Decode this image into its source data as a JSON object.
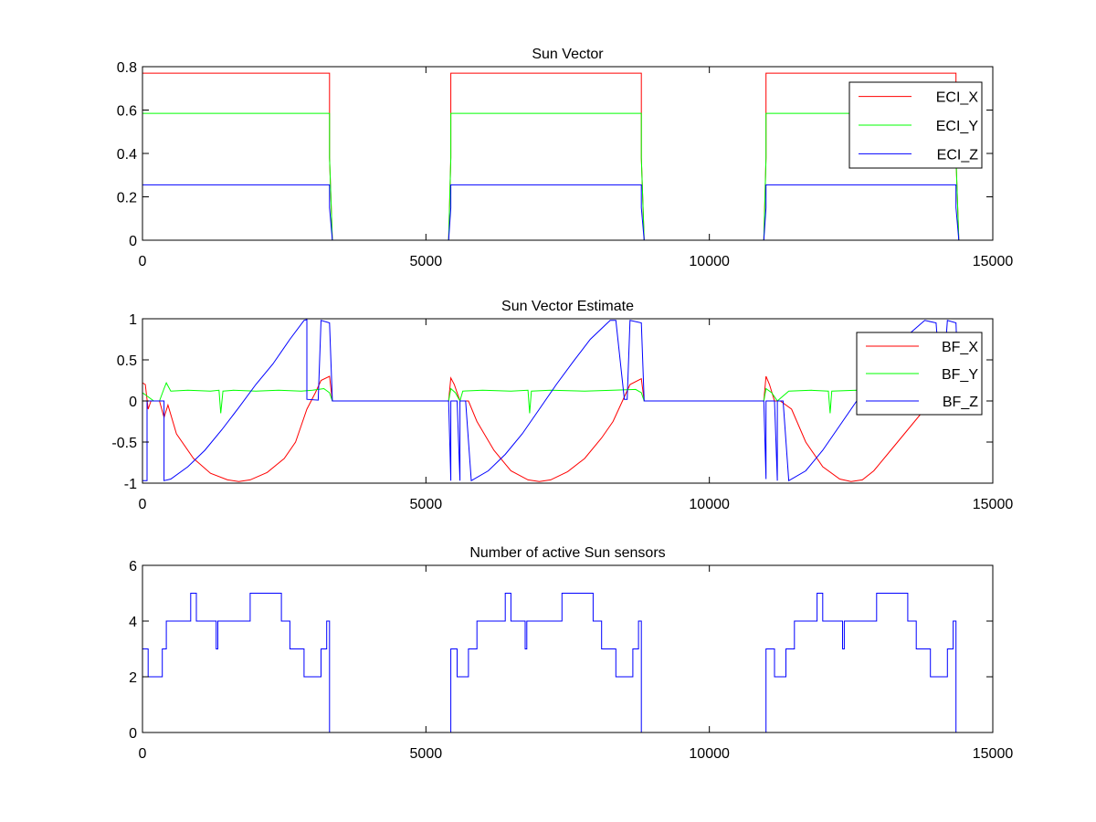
{
  "figure": {
    "background": "#ffffff"
  },
  "chart_data": [
    {
      "type": "line",
      "title": "Sun Vector",
      "xlabel": "",
      "ylabel": "",
      "xlim": [
        0,
        15000
      ],
      "ylim": [
        0,
        0.8
      ],
      "xticks": [
        0,
        5000,
        10000,
        15000
      ],
      "yticks": [
        0,
        0.2,
        0.4,
        0.6,
        0.8
      ],
      "xtick_labels": [
        "0",
        "5000",
        "10000",
        "15000"
      ],
      "ytick_labels": [
        "0",
        "0.2",
        "0.4",
        "0.6",
        "0.8"
      ],
      "grid": false,
      "legend_position": "top-right",
      "series": [
        {
          "name": "ECI_X",
          "color": "#ff0000",
          "x": [
            0,
            3300,
            3300,
            3350,
            5400,
            5440,
            5440,
            8800,
            8800,
            8850,
            10960,
            11000,
            11000,
            14350,
            14350,
            14400
          ],
          "y": [
            0.77,
            0.77,
            0.38,
            0,
            0,
            0.38,
            0.77,
            0.77,
            0.38,
            0,
            0,
            0.38,
            0.77,
            0.77,
            0.38,
            0
          ]
        },
        {
          "name": "ECI_Y",
          "color": "#00ff00",
          "x": [
            0,
            3300,
            3300,
            3350,
            5400,
            5440,
            5440,
            8800,
            8800,
            8850,
            10960,
            11000,
            11000,
            14350,
            14350,
            14400
          ],
          "y": [
            0.585,
            0.585,
            0.38,
            0,
            0,
            0.38,
            0.585,
            0.585,
            0.38,
            0,
            0,
            0.38,
            0.585,
            0.585,
            0.38,
            0
          ]
        },
        {
          "name": "ECI_Z",
          "color": "#0000ff",
          "x": [
            0,
            3300,
            3300,
            3350,
            5400,
            5440,
            5440,
            8800,
            8800,
            8850,
            10960,
            11000,
            11000,
            14350,
            14350,
            14400
          ],
          "y": [
            0.255,
            0.255,
            0.15,
            0,
            0,
            0.15,
            0.255,
            0.255,
            0.15,
            0,
            0,
            0.15,
            0.255,
            0.255,
            0.15,
            0
          ]
        }
      ]
    },
    {
      "type": "line",
      "title": "Sun Vector Estimate",
      "xlabel": "",
      "ylabel": "",
      "xlim": [
        0,
        15000
      ],
      "ylim": [
        -1,
        1
      ],
      "xticks": [
        0,
        5000,
        10000,
        15000
      ],
      "yticks": [
        -1,
        -0.5,
        0,
        0.5,
        1
      ],
      "xtick_labels": [
        "0",
        "5000",
        "10000",
        "15000"
      ],
      "ytick_labels": [
        "-1",
        "-0.5",
        "0",
        "0.5",
        "1"
      ],
      "grid": false,
      "legend_position": "top-right",
      "series": [
        {
          "name": "BF_X",
          "color": "#ff0000",
          "x": [
            0,
            50,
            100,
            150,
            200,
            300,
            380,
            450,
            600,
            900,
            1200,
            1500,
            1700,
            1900,
            2200,
            2500,
            2700,
            2800,
            2900,
            3050,
            3150,
            3300,
            3350,
            5400,
            5440,
            5500,
            5600,
            5650,
            5750,
            5900,
            6200,
            6500,
            6800,
            7000,
            7200,
            7500,
            7800,
            8100,
            8300,
            8500,
            8600,
            8800,
            8850,
            10960,
            11000,
            11060,
            11150,
            11250,
            11450,
            11700,
            12000,
            12300,
            12500,
            12700,
            12900,
            13200,
            13500,
            13800,
            14000,
            14150,
            14300,
            14350,
            14400
          ],
          "y": [
            0.22,
            0.2,
            -0.1,
            0,
            0,
            0,
            -0.2,
            -0.05,
            -0.4,
            -0.7,
            -0.88,
            -0.96,
            -0.98,
            -0.96,
            -0.87,
            -0.7,
            -0.5,
            -0.3,
            -0.1,
            0.1,
            0.25,
            0.3,
            0,
            0,
            0.28,
            0.2,
            0,
            0,
            0,
            -0.25,
            -0.6,
            -0.85,
            -0.96,
            -0.98,
            -0.96,
            -0.86,
            -0.7,
            -0.45,
            -0.25,
            0.05,
            0.2,
            0.27,
            0,
            0,
            0.3,
            0.2,
            0,
            0,
            -0.1,
            -0.5,
            -0.8,
            -0.95,
            -0.98,
            -0.96,
            -0.85,
            -0.6,
            -0.35,
            -0.1,
            0.1,
            0.3,
            0.35,
            0.25,
            0
          ]
        },
        {
          "name": "BF_Y",
          "color": "#00ff00",
          "x": [
            0,
            100,
            200,
            300,
            380,
            420,
            500,
            800,
            1200,
            1350,
            1380,
            1420,
            1600,
            2000,
            2400,
            2800,
            3000,
            3200,
            3300,
            3350,
            5400,
            5440,
            5520,
            5600,
            5650,
            6000,
            6500,
            6800,
            6830,
            6860,
            7200,
            7800,
            8300,
            8700,
            8800,
            8850,
            10960,
            11000,
            11100,
            11200,
            11400,
            11800,
            12100,
            12130,
            12160,
            12600,
            13200,
            13800,
            14200,
            14350,
            14400
          ],
          "y": [
            0.1,
            0.05,
            0,
            0,
            0.15,
            0.22,
            0.12,
            0.13,
            0.12,
            0.13,
            -0.15,
            0.12,
            0.13,
            0.12,
            0.13,
            0.12,
            0.13,
            0.15,
            0.1,
            0,
            0,
            0.15,
            0.1,
            0,
            0.12,
            0.13,
            0.12,
            0.13,
            -0.15,
            0.12,
            0.13,
            0.12,
            0.13,
            0.14,
            0.1,
            0,
            0,
            0.15,
            0.1,
            0,
            0.12,
            0.13,
            0.12,
            -0.15,
            0.12,
            0.13,
            0.12,
            0.13,
            0.12,
            0.1,
            0
          ]
        },
        {
          "name": "BF_Z",
          "color": "#0000ff",
          "x": [
            0,
            80,
            80,
            150,
            300,
            380,
            380,
            500,
            800,
            1100,
            1400,
            1700,
            2000,
            2300,
            2600,
            2850,
            2900,
            2900,
            3100,
            3150,
            3300,
            3350,
            5400,
            5440,
            5440,
            5550,
            5600,
            5600,
            5700,
            5800,
            6100,
            6400,
            6700,
            7000,
            7300,
            7600,
            7900,
            8250,
            8350,
            8500,
            8550,
            8600,
            8800,
            8850,
            10960,
            11000,
            11000,
            11150,
            11200,
            11200,
            11300,
            11400,
            11700,
            12000,
            12300,
            12600,
            12900,
            13200,
            13500,
            13800,
            14000,
            14100,
            14200,
            14350,
            14400
          ],
          "y": [
            -0.97,
            -0.97,
            0,
            0,
            0,
            0,
            -0.97,
            -0.95,
            -0.8,
            -0.6,
            -0.35,
            -0.08,
            0.2,
            0.45,
            0.75,
            0.98,
            0.99,
            0.02,
            0.01,
            0.98,
            0.95,
            0,
            0,
            -0.97,
            0,
            0,
            -0.97,
            0,
            0,
            -0.97,
            -0.85,
            -0.65,
            -0.4,
            -0.1,
            0.2,
            0.48,
            0.75,
            0.98,
            0.98,
            0.02,
            0.02,
            0.98,
            0.95,
            0,
            0,
            -0.95,
            0,
            0,
            -0.97,
            0,
            0,
            -0.97,
            -0.85,
            -0.6,
            -0.3,
            0,
            0.3,
            0.55,
            0.8,
            0.98,
            0.95,
            0.02,
            0.98,
            0.95,
            0
          ]
        }
      ]
    },
    {
      "type": "line",
      "title": "Number of active Sun sensors",
      "xlabel": "",
      "ylabel": "",
      "xlim": [
        0,
        15000
      ],
      "ylim": [
        0,
        6
      ],
      "xticks": [
        0,
        5000,
        10000,
        15000
      ],
      "yticks": [
        0,
        2,
        4,
        6
      ],
      "xtick_labels": [
        "0",
        "5000",
        "10000",
        "15000"
      ],
      "ytick_labels": [
        "0",
        "2",
        "4",
        "6"
      ],
      "grid": false,
      "legend_position": "none",
      "series": [
        {
          "name": "",
          "color": "#0000ff",
          "x": [
            0,
            100,
            100,
            350,
            350,
            420,
            420,
            850,
            850,
            950,
            950,
            1300,
            1300,
            1330,
            1330,
            1900,
            1900,
            2450,
            2450,
            2600,
            2600,
            2850,
            2850,
            3150,
            3150,
            3250,
            3250,
            3300,
            3300,
            5440,
            5440,
            5550,
            5550,
            5750,
            5750,
            5900,
            5900,
            6400,
            6400,
            6500,
            6500,
            6750,
            6750,
            6780,
            6780,
            7400,
            7400,
            7950,
            7950,
            8100,
            8100,
            8350,
            8350,
            8650,
            8650,
            8750,
            8750,
            8800,
            8800,
            10960,
            11000,
            11000,
            11150,
            11150,
            11350,
            11350,
            11500,
            11500,
            11900,
            11900,
            12000,
            12000,
            12350,
            12350,
            12380,
            12380,
            12950,
            12950,
            13500,
            13500,
            13650,
            13650,
            13900,
            13900,
            14200,
            14200,
            14300,
            14300,
            14350,
            14350
          ],
          "y": [
            3,
            3,
            2,
            2,
            3,
            3,
            4,
            4,
            5,
            5,
            4,
            4,
            3,
            3,
            4,
            4,
            5,
            5,
            4,
            4,
            3,
            3,
            2,
            2,
            3,
            3,
            4,
            4,
            0,
            0,
            3,
            3,
            2,
            2,
            3,
            3,
            4,
            4,
            5,
            5,
            4,
            4,
            3,
            3,
            4,
            4,
            5,
            5,
            4,
            4,
            3,
            3,
            2,
            2,
            3,
            3,
            4,
            4,
            0,
            0,
            0,
            3,
            3,
            2,
            2,
            3,
            3,
            4,
            4,
            5,
            5,
            4,
            4,
            3,
            3,
            4,
            4,
            5,
            5,
            4,
            4,
            3,
            3,
            2,
            2,
            3,
            3,
            4,
            4,
            0
          ]
        }
      ]
    }
  ]
}
